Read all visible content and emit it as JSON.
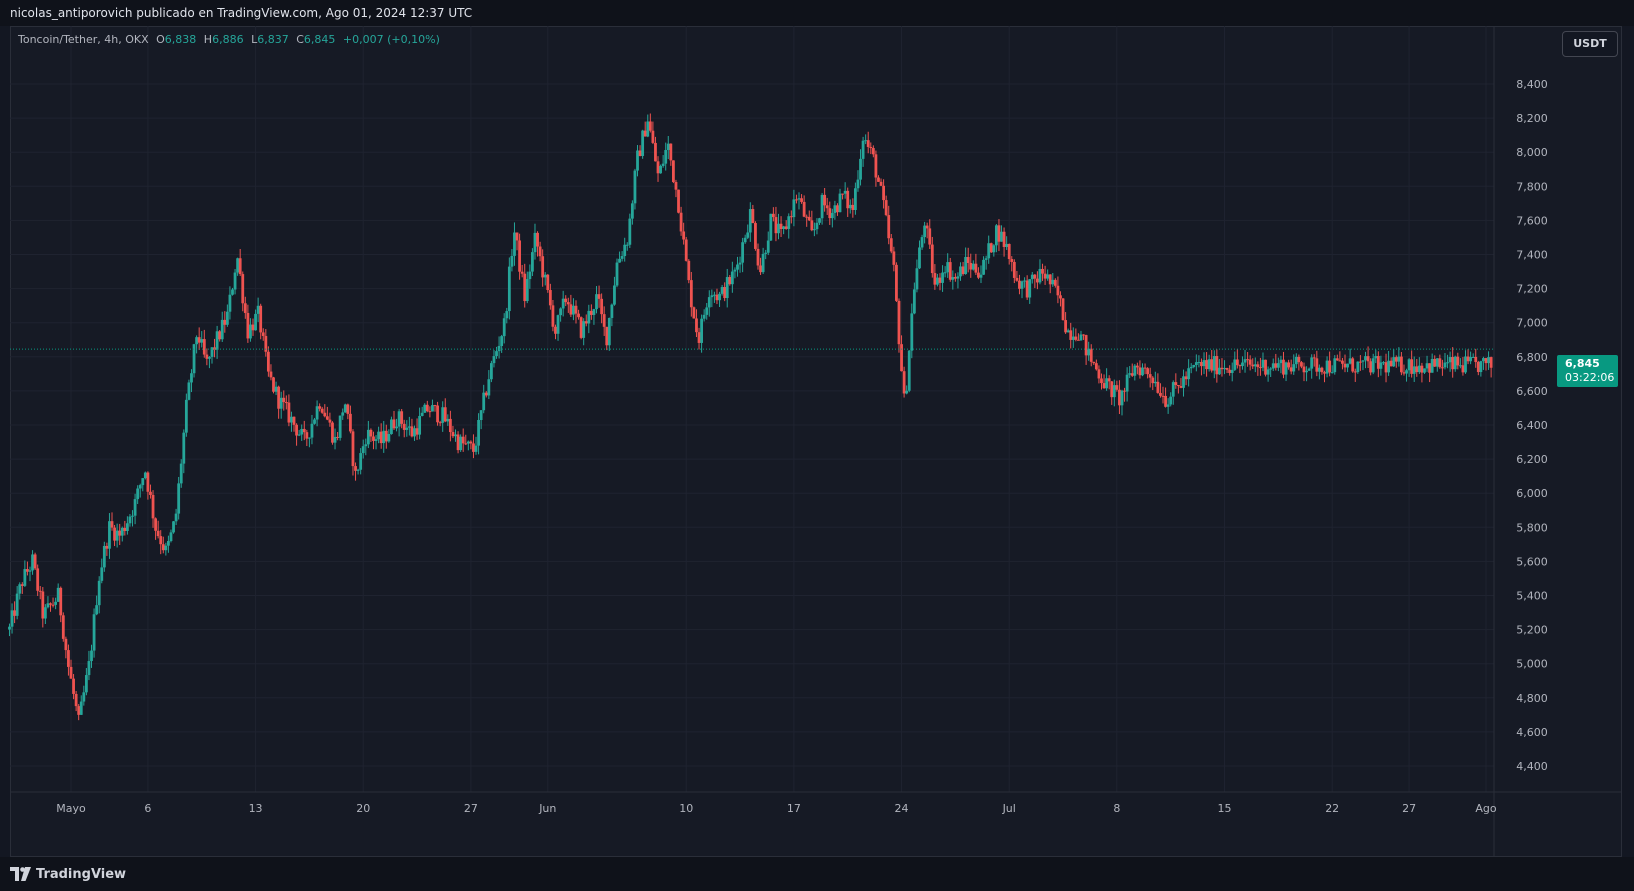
{
  "header": {
    "publish_line": "nicolas_antiporovich publicado en TradingView.com, Ago 01, 2024 12:37 UTC"
  },
  "legend": {
    "symbol": "Toncoin/Tether, 4h, OKX",
    "open_label": "O",
    "open": "6,838",
    "high_label": "H",
    "high": "6,886",
    "low_label": "L",
    "low": "6,837",
    "close_label": "C",
    "close": "6,845",
    "change": "+0,007 (+0,10%)"
  },
  "currency_button": "USDT",
  "last_price": {
    "price": "6,845",
    "countdown": "03:22:06"
  },
  "footer": {
    "brand": "TradingView"
  },
  "colors": {
    "up": "#26a69a",
    "down": "#ef5350",
    "background": "#161a25",
    "grid": "#1f2330",
    "last_price_tag": "#089981"
  },
  "chart_data": {
    "type": "candlestick",
    "timeframe": "4h",
    "exchange": "OKX",
    "ylim": [
      4200,
      8600
    ],
    "y_ticks": [
      4400,
      4600,
      4800,
      5000,
      5200,
      5400,
      5600,
      5800,
      6000,
      6200,
      6400,
      6600,
      6800,
      7000,
      7200,
      7400,
      7600,
      7800,
      8000,
      8200,
      8400
    ],
    "y_tick_labels": [
      "4,400",
      "4,600",
      "4,800",
      "5,000",
      "5,200",
      "5,400",
      "5,600",
      "5,800",
      "6,000",
      "6,200",
      "6,400",
      "6,600",
      "6,800",
      "7,000",
      "7,200",
      "7,400",
      "7,600",
      "7,800",
      "8,000",
      "8,200",
      "8,400"
    ],
    "x_ticks": [
      {
        "label": "Mayo",
        "day": 0
      },
      {
        "label": "6",
        "day": 5
      },
      {
        "label": "13",
        "day": 12
      },
      {
        "label": "20",
        "day": 19
      },
      {
        "label": "27",
        "day": 26
      },
      {
        "label": "Jun",
        "day": 31
      },
      {
        "label": "10",
        "day": 40
      },
      {
        "label": "17",
        "day": 47
      },
      {
        "label": "24",
        "day": 54
      },
      {
        "label": "Jul",
        "day": 61
      },
      {
        "label": "8",
        "day": 68
      },
      {
        "label": "15",
        "day": 75
      },
      {
        "label": "22",
        "day": 82
      },
      {
        "label": "27",
        "day": 87
      },
      {
        "label": "Ago",
        "day": 92
      }
    ],
    "start_day": -4,
    "end_day": 92.5,
    "close_path": [
      [
        -4,
        5200
      ],
      [
        -3.2,
        5480
      ],
      [
        -2.5,
        5600
      ],
      [
        -1.8,
        5280
      ],
      [
        -0.8,
        5400
      ],
      [
        -0.2,
        5000
      ],
      [
        0.5,
        4650
      ],
      [
        1.2,
        5000
      ],
      [
        1.8,
        5500
      ],
      [
        2.5,
        5800
      ],
      [
        3.2,
        5750
      ],
      [
        4.2,
        5950
      ],
      [
        4.8,
        6150
      ],
      [
        5.5,
        5800
      ],
      [
        6.2,
        5650
      ],
      [
        6.8,
        5850
      ],
      [
        7.5,
        6500
      ],
      [
        8.2,
        6950
      ],
      [
        8.8,
        6750
      ],
      [
        9.5,
        6900
      ],
      [
        10.2,
        7050
      ],
      [
        10.8,
        7400
      ],
      [
        11.5,
        6950
      ],
      [
        12.2,
        7050
      ],
      [
        12.8,
        6700
      ],
      [
        13.5,
        6550
      ],
      [
        14.2,
        6450
      ],
      [
        15.2,
        6300
      ],
      [
        16.2,
        6550
      ],
      [
        17.2,
        6300
      ],
      [
        17.8,
        6550
      ],
      [
        18.5,
        6100
      ],
      [
        19.2,
        6350
      ],
      [
        20.2,
        6300
      ],
      [
        21.2,
        6450
      ],
      [
        22.2,
        6350
      ],
      [
        23.2,
        6500
      ],
      [
        24.2,
        6450
      ],
      [
        25.2,
        6300
      ],
      [
        26.2,
        6250
      ],
      [
        27.2,
        6700
      ],
      [
        28.2,
        7000
      ],
      [
        28.8,
        7550
      ],
      [
        29.5,
        7150
      ],
      [
        30.2,
        7500
      ],
      [
        30.8,
        7250
      ],
      [
        31.5,
        6950
      ],
      [
        32.2,
        7150
      ],
      [
        33.2,
        6950
      ],
      [
        34.2,
        7150
      ],
      [
        34.8,
        6900
      ],
      [
        35.5,
        7350
      ],
      [
        36.2,
        7500
      ],
      [
        36.8,
        7950
      ],
      [
        37.5,
        8200
      ],
      [
        38.2,
        7850
      ],
      [
        38.8,
        8050
      ],
      [
        39.5,
        7700
      ],
      [
        40.2,
        7200
      ],
      [
        40.8,
        6900
      ],
      [
        41.5,
        7200
      ],
      [
        42.2,
        7150
      ],
      [
        43.2,
        7300
      ],
      [
        44.2,
        7650
      ],
      [
        44.8,
        7300
      ],
      [
        45.5,
        7600
      ],
      [
        46.2,
        7500
      ],
      [
        47.2,
        7750
      ],
      [
        48.2,
        7500
      ],
      [
        48.8,
        7700
      ],
      [
        49.5,
        7650
      ],
      [
        50.2,
        7750
      ],
      [
        50.8,
        7650
      ],
      [
        51.5,
        8100
      ],
      [
        52.2,
        7950
      ],
      [
        52.8,
        7700
      ],
      [
        53.5,
        7300
      ],
      [
        54.2,
        6500
      ],
      [
        54.8,
        7200
      ],
      [
        55.5,
        7600
      ],
      [
        56.2,
        7200
      ],
      [
        56.8,
        7350
      ],
      [
        57.5,
        7250
      ],
      [
        58.2,
        7350
      ],
      [
        59.2,
        7300
      ],
      [
        60.2,
        7550
      ],
      [
        60.8,
        7450
      ],
      [
        61.5,
        7250
      ],
      [
        62.2,
        7200
      ],
      [
        63.2,
        7300
      ],
      [
        64.2,
        7150
      ],
      [
        64.8,
        6950
      ],
      [
        65.5,
        6950
      ],
      [
        66.2,
        6800
      ],
      [
        67.2,
        6650
      ],
      [
        68.2,
        6550
      ],
      [
        69.2,
        6750
      ],
      [
        70.2,
        6700
      ],
      [
        71.2,
        6550
      ],
      [
        72.2,
        6650
      ],
      [
        73.2,
        6750
      ]
    ]
  }
}
